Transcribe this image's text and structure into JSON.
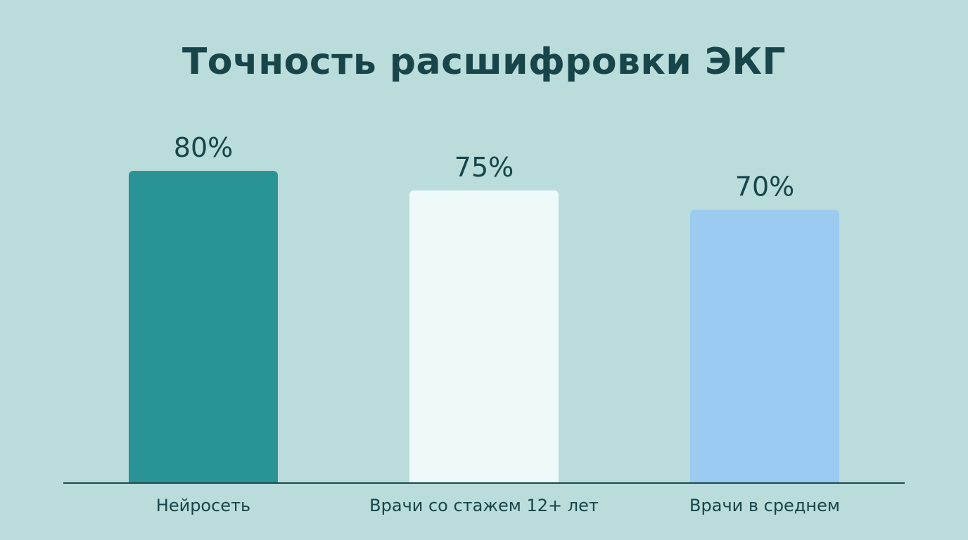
{
  "chart_data": {
    "type": "bar",
    "title": "Точность расшифровки ЭКГ",
    "xlabel": "",
    "ylabel": "",
    "ylim": [
      0,
      100
    ],
    "grid": false,
    "categories": [
      "Нейросеть",
      "Врачи со стажем 12+ лет",
      "Врачи в среднем"
    ],
    "values": [
      80,
      75,
      70
    ],
    "value_labels": [
      "80%",
      "75%",
      "70%"
    ],
    "colors": [
      "#2a9396",
      "#eefafa",
      "#9ccbf1"
    ]
  },
  "colors": {
    "background": "#badcdb",
    "text": "#17454a",
    "axis": "#1c4a4e"
  }
}
